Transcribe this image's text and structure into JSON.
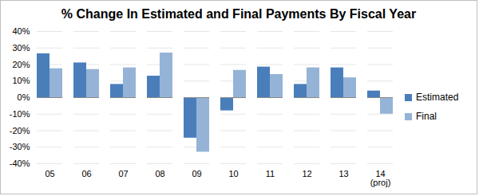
{
  "chart_data": {
    "type": "bar",
    "title": "% Change In Estimated and Final Payments By Fiscal Year",
    "categories": [
      "05",
      "06",
      "07",
      "08",
      "09",
      "10",
      "11",
      "12",
      "13",
      "14\n(proj)"
    ],
    "series": [
      {
        "name": "Estimated",
        "color": "#4a7ebb",
        "values": [
          26.5,
          21,
          8,
          13,
          -24.5,
          -8,
          18.5,
          8,
          18,
          4
        ]
      },
      {
        "name": "Final",
        "color": "#95b3d7",
        "values": [
          17.5,
          17,
          18,
          27,
          -33,
          16.5,
          14,
          18,
          12,
          -10
        ]
      }
    ],
    "ylim": [
      -40,
      40
    ],
    "yticks": [
      {
        "value": -40,
        "label": "-40%"
      },
      {
        "value": -30,
        "label": "-30%"
      },
      {
        "value": -20,
        "label": "-20%"
      },
      {
        "value": -10,
        "label": "-10%"
      },
      {
        "value": 0,
        "label": "0%"
      },
      {
        "value": 10,
        "label": "10%"
      },
      {
        "value": 20,
        "label": "20%"
      },
      {
        "value": 30,
        "label": "30%"
      },
      {
        "value": 40,
        "label": "40%"
      }
    ],
    "grid": true,
    "legend": "right"
  }
}
